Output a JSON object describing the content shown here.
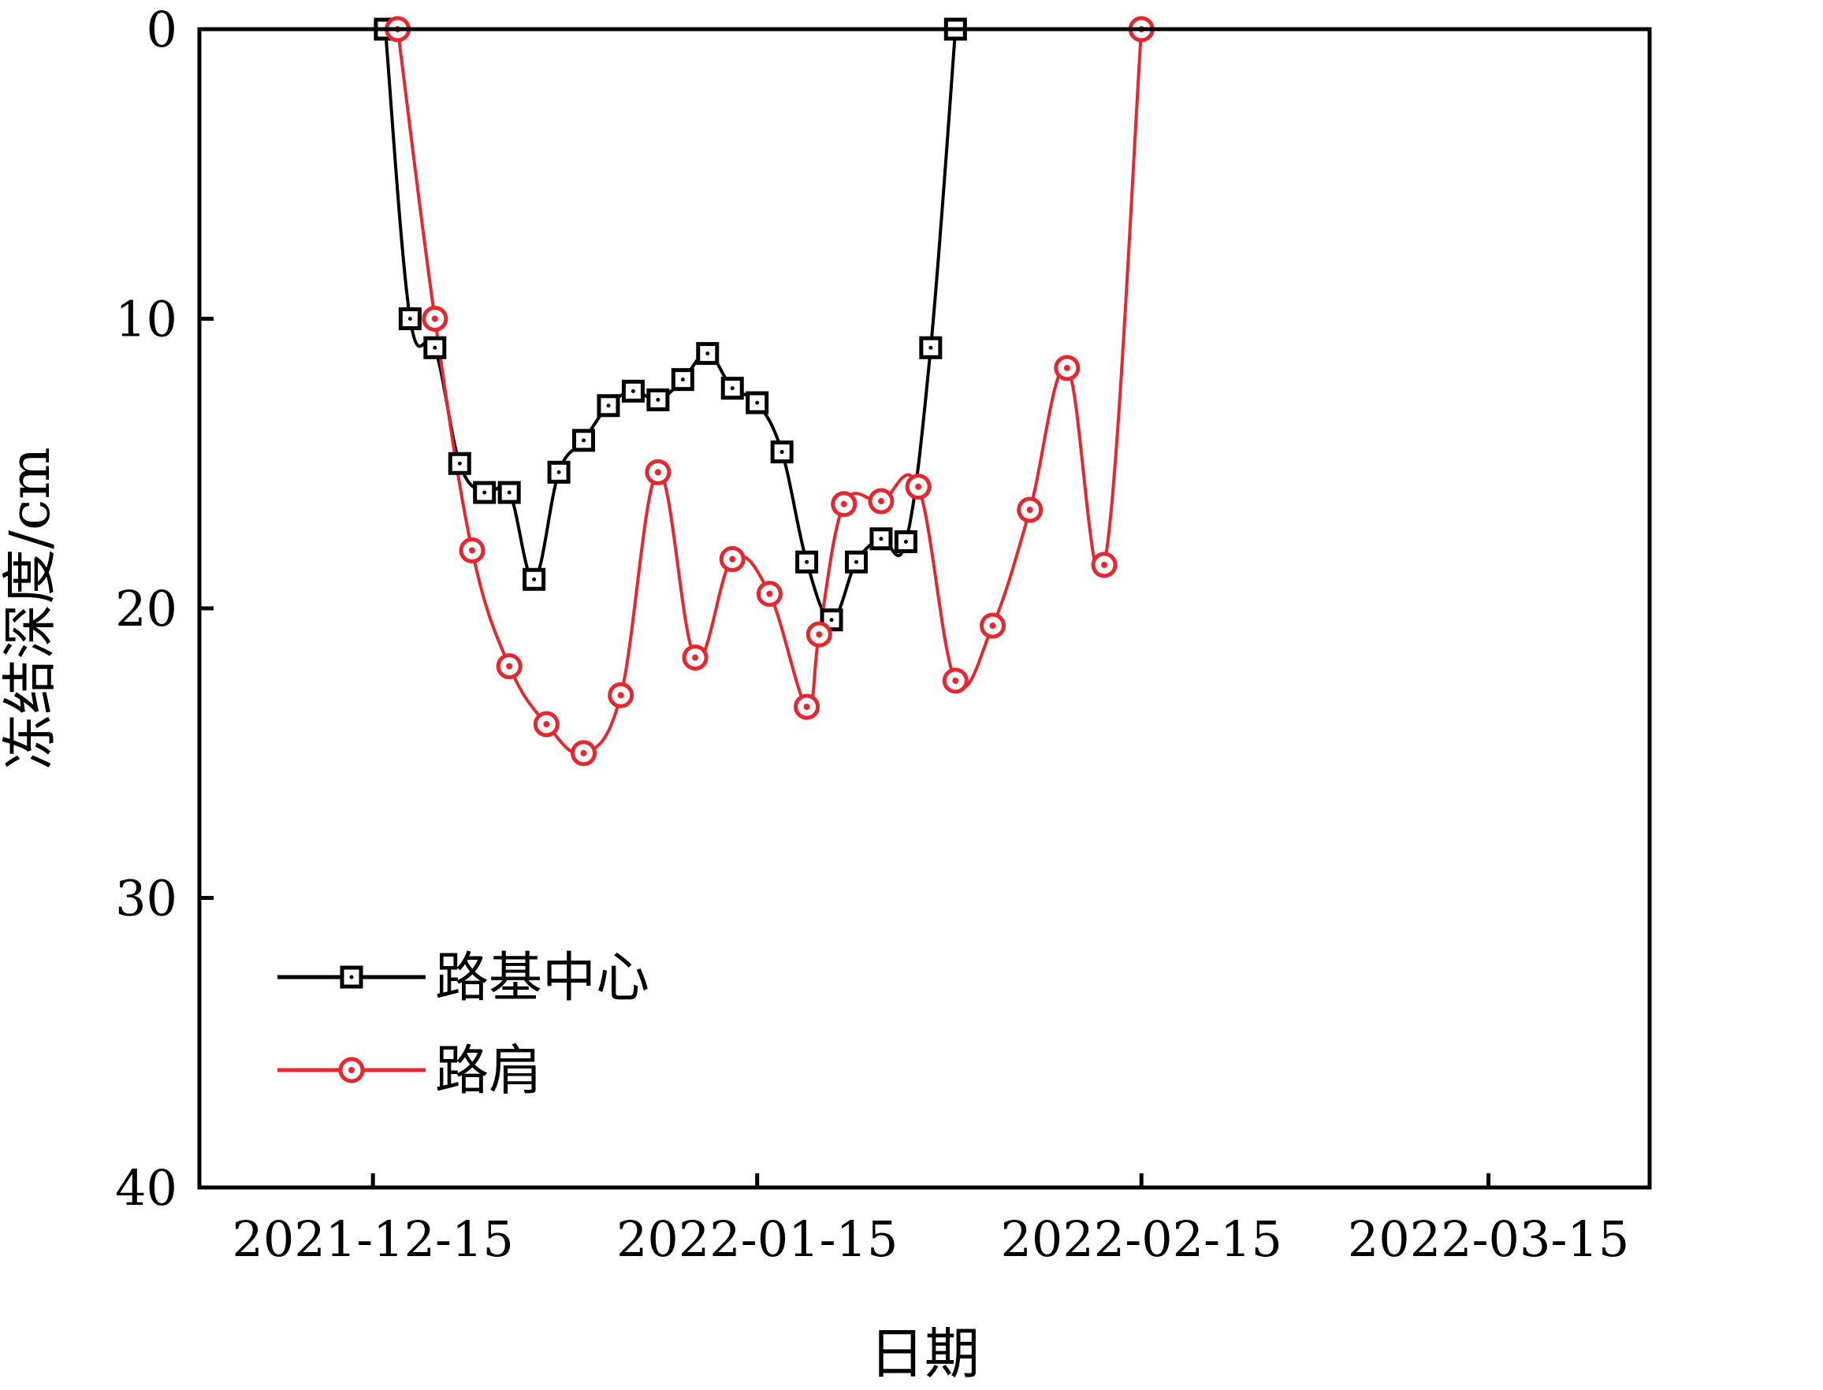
{
  "chart_data": {
    "type": "line",
    "title": "",
    "xlabel": "日期",
    "ylabel": "冻结深度/cm",
    "x_axis": {
      "type": "date",
      "range": [
        "2021-12-01",
        "2022-03-28"
      ],
      "ticks": [
        "2021-12-15",
        "2022-01-15",
        "2022-02-15",
        "2022-03-15"
      ]
    },
    "y_axis": {
      "inverted": true,
      "range": [
        0,
        40
      ],
      "ticks": [
        "0",
        "10",
        "20",
        "30",
        "40"
      ]
    },
    "grid": false,
    "legend_position": "bottom-left",
    "series": [
      {
        "name": "路基中心",
        "color": "#000000",
        "marker": "square",
        "points": [
          [
            "2021-12-16",
            0
          ],
          [
            "2021-12-18",
            10
          ],
          [
            "2021-12-20",
            11
          ],
          [
            "2021-12-22",
            15
          ],
          [
            "2021-12-24",
            16
          ],
          [
            "2021-12-26",
            16
          ],
          [
            "2021-12-28",
            19
          ],
          [
            "2021-12-30",
            15.3
          ],
          [
            "2022-01-01",
            14.2
          ],
          [
            "2022-01-03",
            13
          ],
          [
            "2022-01-05",
            12.5
          ],
          [
            "2022-01-07",
            12.8
          ],
          [
            "2022-01-09",
            12.1
          ],
          [
            "2022-01-11",
            11.2
          ],
          [
            "2022-01-13",
            12.4
          ],
          [
            "2022-01-15",
            12.9
          ],
          [
            "2022-01-17",
            14.6
          ],
          [
            "2022-01-19",
            18.4
          ],
          [
            "2022-01-21",
            20.4
          ],
          [
            "2022-01-23",
            18.4
          ],
          [
            "2022-01-25",
            17.6
          ],
          [
            "2022-01-27",
            17.7
          ],
          [
            "2022-01-29",
            11
          ],
          [
            "2022-01-31",
            0
          ]
        ]
      },
      {
        "name": "路肩",
        "color": "#e8262e",
        "marker": "circle",
        "points": [
          [
            "2021-12-17",
            0
          ],
          [
            "2021-12-20",
            10
          ],
          [
            "2021-12-23",
            18
          ],
          [
            "2021-12-26",
            22
          ],
          [
            "2021-12-29",
            24
          ],
          [
            "2022-01-01",
            25
          ],
          [
            "2022-01-04",
            23
          ],
          [
            "2022-01-07",
            15.3
          ],
          [
            "2022-01-10",
            21.7
          ],
          [
            "2022-01-13",
            18.3
          ],
          [
            "2022-01-16",
            19.5
          ],
          [
            "2022-01-19",
            23.4
          ],
          [
            "2022-01-20",
            20.9
          ],
          [
            "2022-01-22",
            16.4
          ],
          [
            "2022-01-25",
            16.3
          ],
          [
            "2022-01-28",
            15.8
          ],
          [
            "2022-01-31",
            22.5
          ],
          [
            "2022-02-03",
            20.6
          ],
          [
            "2022-02-06",
            16.6
          ],
          [
            "2022-02-09",
            11.7
          ],
          [
            "2022-02-12",
            18.5
          ],
          [
            "2022-02-15",
            0
          ]
        ]
      }
    ]
  }
}
